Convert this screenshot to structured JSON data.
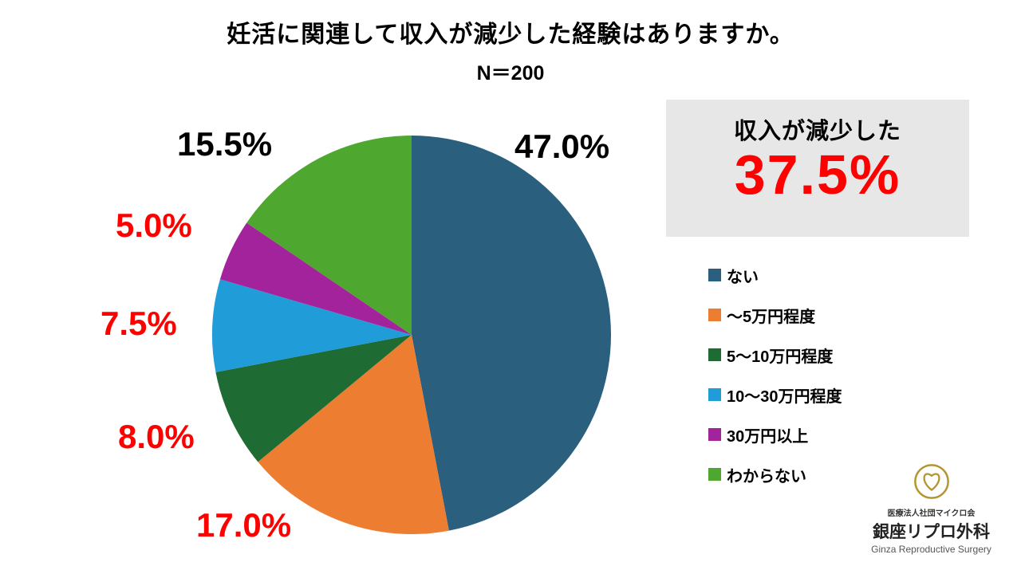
{
  "title": "妊活に関連して収入が減少した経験はありますか。",
  "sample_size": "N＝200",
  "chart_data": {
    "type": "pie",
    "title": "妊活に関連して収入が減少した経験はありますか。",
    "n_label": "N＝200",
    "n": 200,
    "categories": [
      "ない",
      "～5万円程度",
      "5～10万円程度",
      "10～30万円程度",
      "30万円以上",
      "わからない"
    ],
    "values": [
      47.0,
      17.0,
      8.0,
      7.5,
      5.0,
      15.5
    ],
    "colors": [
      "#2B5F7E",
      "#ED7D31",
      "#1E6B33",
      "#209CD8",
      "#A3239C",
      "#4EA72E"
    ],
    "start_angle_deg": -90,
    "direction": "clockwise",
    "legend_position": "right",
    "slice_labels": [
      {
        "text": "47.0%",
        "color": "#000000"
      },
      {
        "text": "17.0%",
        "color": "#FF0000"
      },
      {
        "text": "8.0%",
        "color": "#FF0000"
      },
      {
        "text": "7.5%",
        "color": "#FF0000"
      },
      {
        "text": "5.0%",
        "color": "#FF0000"
      },
      {
        "text": "15.5%",
        "color": "#000000"
      }
    ]
  },
  "highlight_box": {
    "label": "収入が減少した",
    "value": "37.5%",
    "value_color": "#FF0000",
    "background": "#E7E7E7"
  },
  "legend": {
    "items": [
      {
        "label": "ない",
        "color": "#2B5F7E"
      },
      {
        "label": "～5万円程度",
        "color": "#ED7D31"
      },
      {
        "label": "5～10万円程度",
        "color": "#1E6B33"
      },
      {
        "label": "10～30万円程度",
        "color": "#209CD8"
      },
      {
        "label": "30万円以上",
        "color": "#A3239C"
      },
      {
        "label": "わからない",
        "color": "#4EA72E"
      }
    ]
  },
  "logo": {
    "org_small": "医療法人社団マイクロ会",
    "org_name": "銀座リプロ外科",
    "org_en": "Ginza Reproductive Surgery",
    "mark_color": "#B5952F"
  }
}
